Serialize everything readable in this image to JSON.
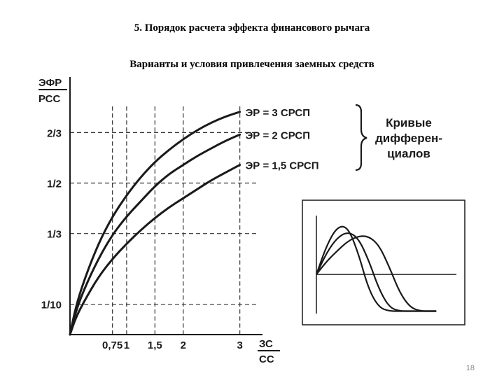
{
  "slide": {
    "title": "5. Порядок расчета эффекта финансового рычага",
    "subtitle": "Варианты и условия привлечения заемных средств",
    "page_number": "18"
  },
  "chart_data": [
    {
      "type": "line",
      "ylabel_num": "ЭФР",
      "ylabel_den": "РСС",
      "xlabel_num": "ЗС",
      "xlabel_den": "СС",
      "x_ticks": [
        {
          "label": "0,75",
          "value": 0.75
        },
        {
          "label": "1",
          "value": 1
        },
        {
          "label": "1,5",
          "value": 1.5
        },
        {
          "label": "2",
          "value": 2
        },
        {
          "label": "3",
          "value": 3
        }
      ],
      "y_ticks": [
        {
          "label": "1/10",
          "value": 0.1
        },
        {
          "label": "1/3",
          "value": 0.3333
        },
        {
          "label": "1/2",
          "value": 0.5
        },
        {
          "label": "2/3",
          "value": 0.6667
        }
      ],
      "xlim": [
        0,
        3.4
      ],
      "ylim": [
        0,
        0.85
      ],
      "grid": "dashed at tick values",
      "series": [
        {
          "name": "ЭР = 3 СРСП",
          "x": [
            0,
            0.1,
            0.25,
            0.5,
            0.75,
            1.0,
            1.25,
            1.5,
            1.75,
            2.0,
            2.25,
            2.5,
            2.75,
            3.0
          ],
          "y": [
            0.0,
            0.09,
            0.18,
            0.3,
            0.39,
            0.46,
            0.52,
            0.57,
            0.61,
            0.645,
            0.675,
            0.7,
            0.72,
            0.735
          ]
        },
        {
          "name": "ЭР = 2 СРСП",
          "x": [
            0,
            0.1,
            0.25,
            0.5,
            0.75,
            1.0,
            1.25,
            1.5,
            1.75,
            2.0,
            2.25,
            2.5,
            2.75,
            3.0
          ],
          "y": [
            0.0,
            0.075,
            0.15,
            0.25,
            0.33,
            0.39,
            0.44,
            0.49,
            0.53,
            0.56,
            0.59,
            0.615,
            0.64,
            0.66
          ]
        },
        {
          "name": "ЭР = 1,5 СРСП",
          "x": [
            0,
            0.1,
            0.25,
            0.5,
            0.75,
            1.0,
            1.25,
            1.5,
            1.75,
            2.0,
            2.25,
            2.5,
            2.75,
            3.0
          ],
          "y": [
            0.0,
            0.055,
            0.11,
            0.19,
            0.25,
            0.3,
            0.345,
            0.385,
            0.42,
            0.45,
            0.48,
            0.51,
            0.535,
            0.56
          ]
        }
      ],
      "bracket_label": [
        "Кривые",
        "дифферен-",
        "циалов"
      ]
    },
    {
      "type": "line",
      "series": [
        {
          "x": [
            0,
            0.1,
            0.2,
            0.3,
            0.4,
            0.5,
            0.6,
            0.7,
            0.8,
            0.9,
            1.0,
            1.1,
            1.2
          ],
          "y": [
            0.0,
            0.4,
            0.65,
            0.65,
            0.3,
            -0.2,
            -0.45,
            -0.5,
            -0.5,
            -0.5,
            -0.5,
            -0.5,
            -0.5
          ]
        },
        {
          "x": [
            0,
            0.1,
            0.2,
            0.3,
            0.4,
            0.5,
            0.6,
            0.7,
            0.8,
            0.9,
            1.0,
            1.1,
            1.2
          ],
          "y": [
            0.0,
            0.3,
            0.5,
            0.58,
            0.5,
            0.2,
            -0.2,
            -0.45,
            -0.5,
            -0.5,
            -0.5,
            -0.5,
            -0.5
          ]
        },
        {
          "x": [
            0,
            0.1,
            0.2,
            0.3,
            0.4,
            0.5,
            0.6,
            0.7,
            0.8,
            0.9,
            1.0,
            1.1,
            1.2
          ],
          "y": [
            0.0,
            0.18,
            0.32,
            0.45,
            0.52,
            0.52,
            0.4,
            0.1,
            -0.25,
            -0.45,
            -0.5,
            -0.5,
            -0.5
          ]
        }
      ]
    }
  ]
}
